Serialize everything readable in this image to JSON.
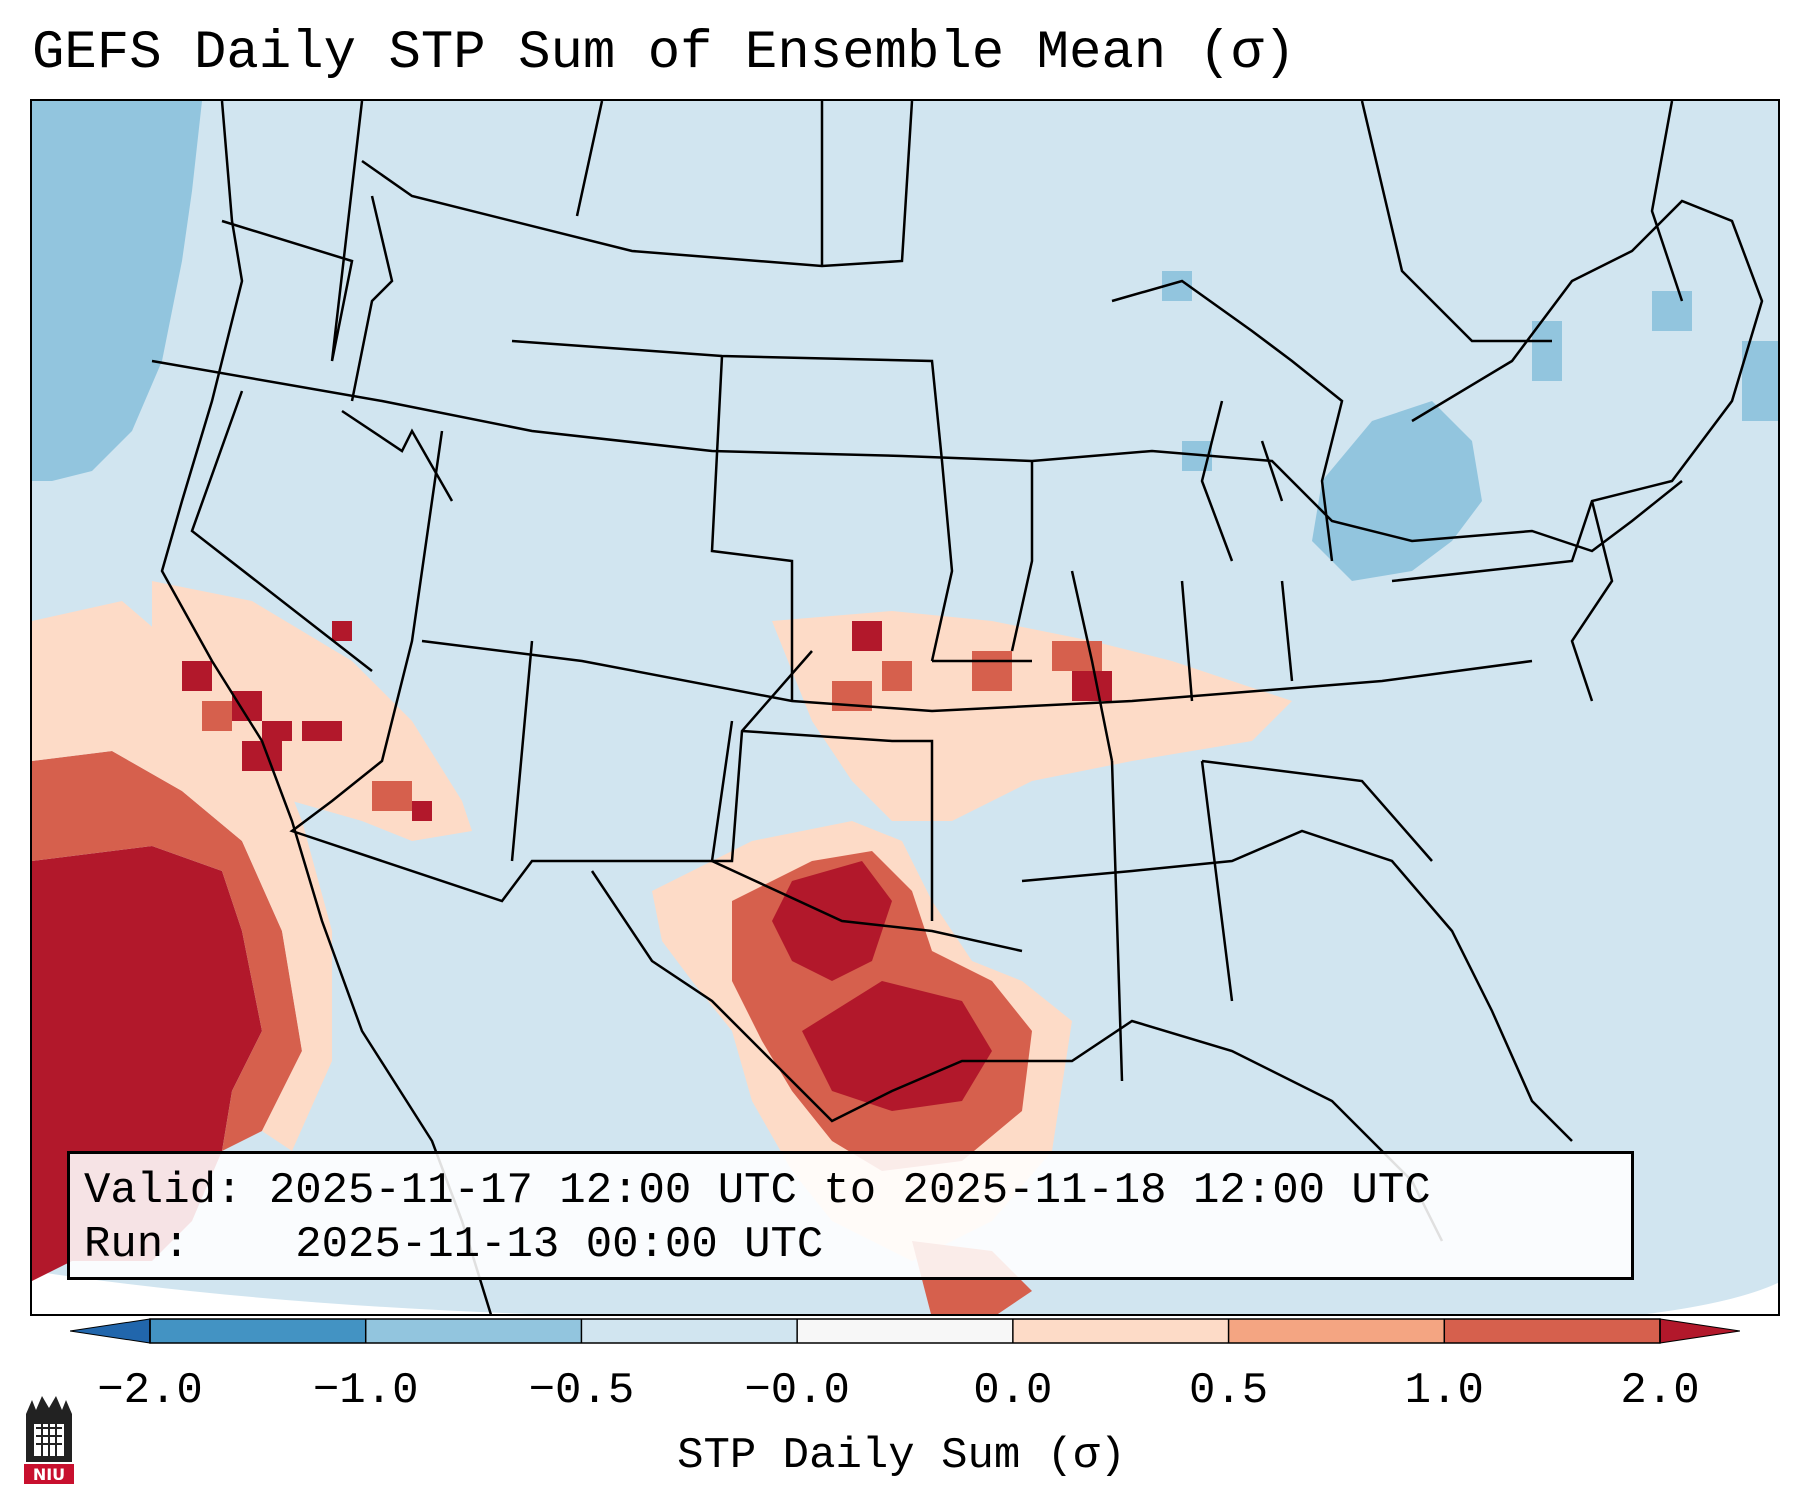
{
  "title": "GEFS Daily STP Sum of Ensemble Mean (σ)",
  "info": {
    "valid_label": "Valid:",
    "valid_value": "2025-11-17 12:00 UTC to 2025-11-18 12:00 UTC",
    "run_label": "Run:",
    "run_value": "2025-11-13 00:00 UTC"
  },
  "colorbar": {
    "label": "STP Daily Sum (σ)",
    "ticks": [
      "−2.0",
      "−1.0",
      "−0.5",
      "−0.0",
      "0.0",
      "0.5",
      "1.0",
      "2.0"
    ],
    "bins": [
      {
        "from": "-2.0",
        "to": "-1.0",
        "color": "#4393c3"
      },
      {
        "from": "-1.0",
        "to": "-0.5",
        "color": "#92c5de"
      },
      {
        "from": "-0.5",
        "to": "-0.0",
        "color": "#d1e5f0"
      },
      {
        "from": "-0.0",
        "to": "0.0",
        "color": "#f7f7f7"
      },
      {
        "from": "0.0",
        "to": "0.5",
        "color": "#fddbc7"
      },
      {
        "from": "0.5",
        "to": "1.0",
        "color": "#f4a582"
      },
      {
        "from": "1.0",
        "to": "2.0",
        "color": "#d6604d"
      }
    ],
    "extend_low_color": "#2166ac",
    "extend_high_color": "#b2182b"
  },
  "map": {
    "region": "Continental United States",
    "background_color": "#d1e5f0",
    "anomaly_regions": [
      {
        "area": "Texas / Oklahoma / Gulf Coast",
        "category": "1.0 to 2.0 and above",
        "color": "#b2182b"
      },
      {
        "area": "Eastern Pacific off Baja California",
        "category": "above 2.0",
        "color": "#b2182b"
      },
      {
        "area": "Southern California / Nevada / Arizona",
        "category": "0.5 to 2.0",
        "color": "#d6604d"
      },
      {
        "area": "Kansas / Missouri / Illinois / Kentucky",
        "category": "0.0 to 2.0",
        "color": "#f4a582"
      },
      {
        "area": "Great Lakes / New York / Pennsylvania",
        "category": "-1.0 to -0.5",
        "color": "#92c5de"
      },
      {
        "area": "Pacific Northwest coast",
        "category": "-1.0 to -0.5",
        "color": "#92c5de"
      }
    ]
  },
  "logo": {
    "text": "NIU",
    "name": "Northern Illinois University"
  }
}
